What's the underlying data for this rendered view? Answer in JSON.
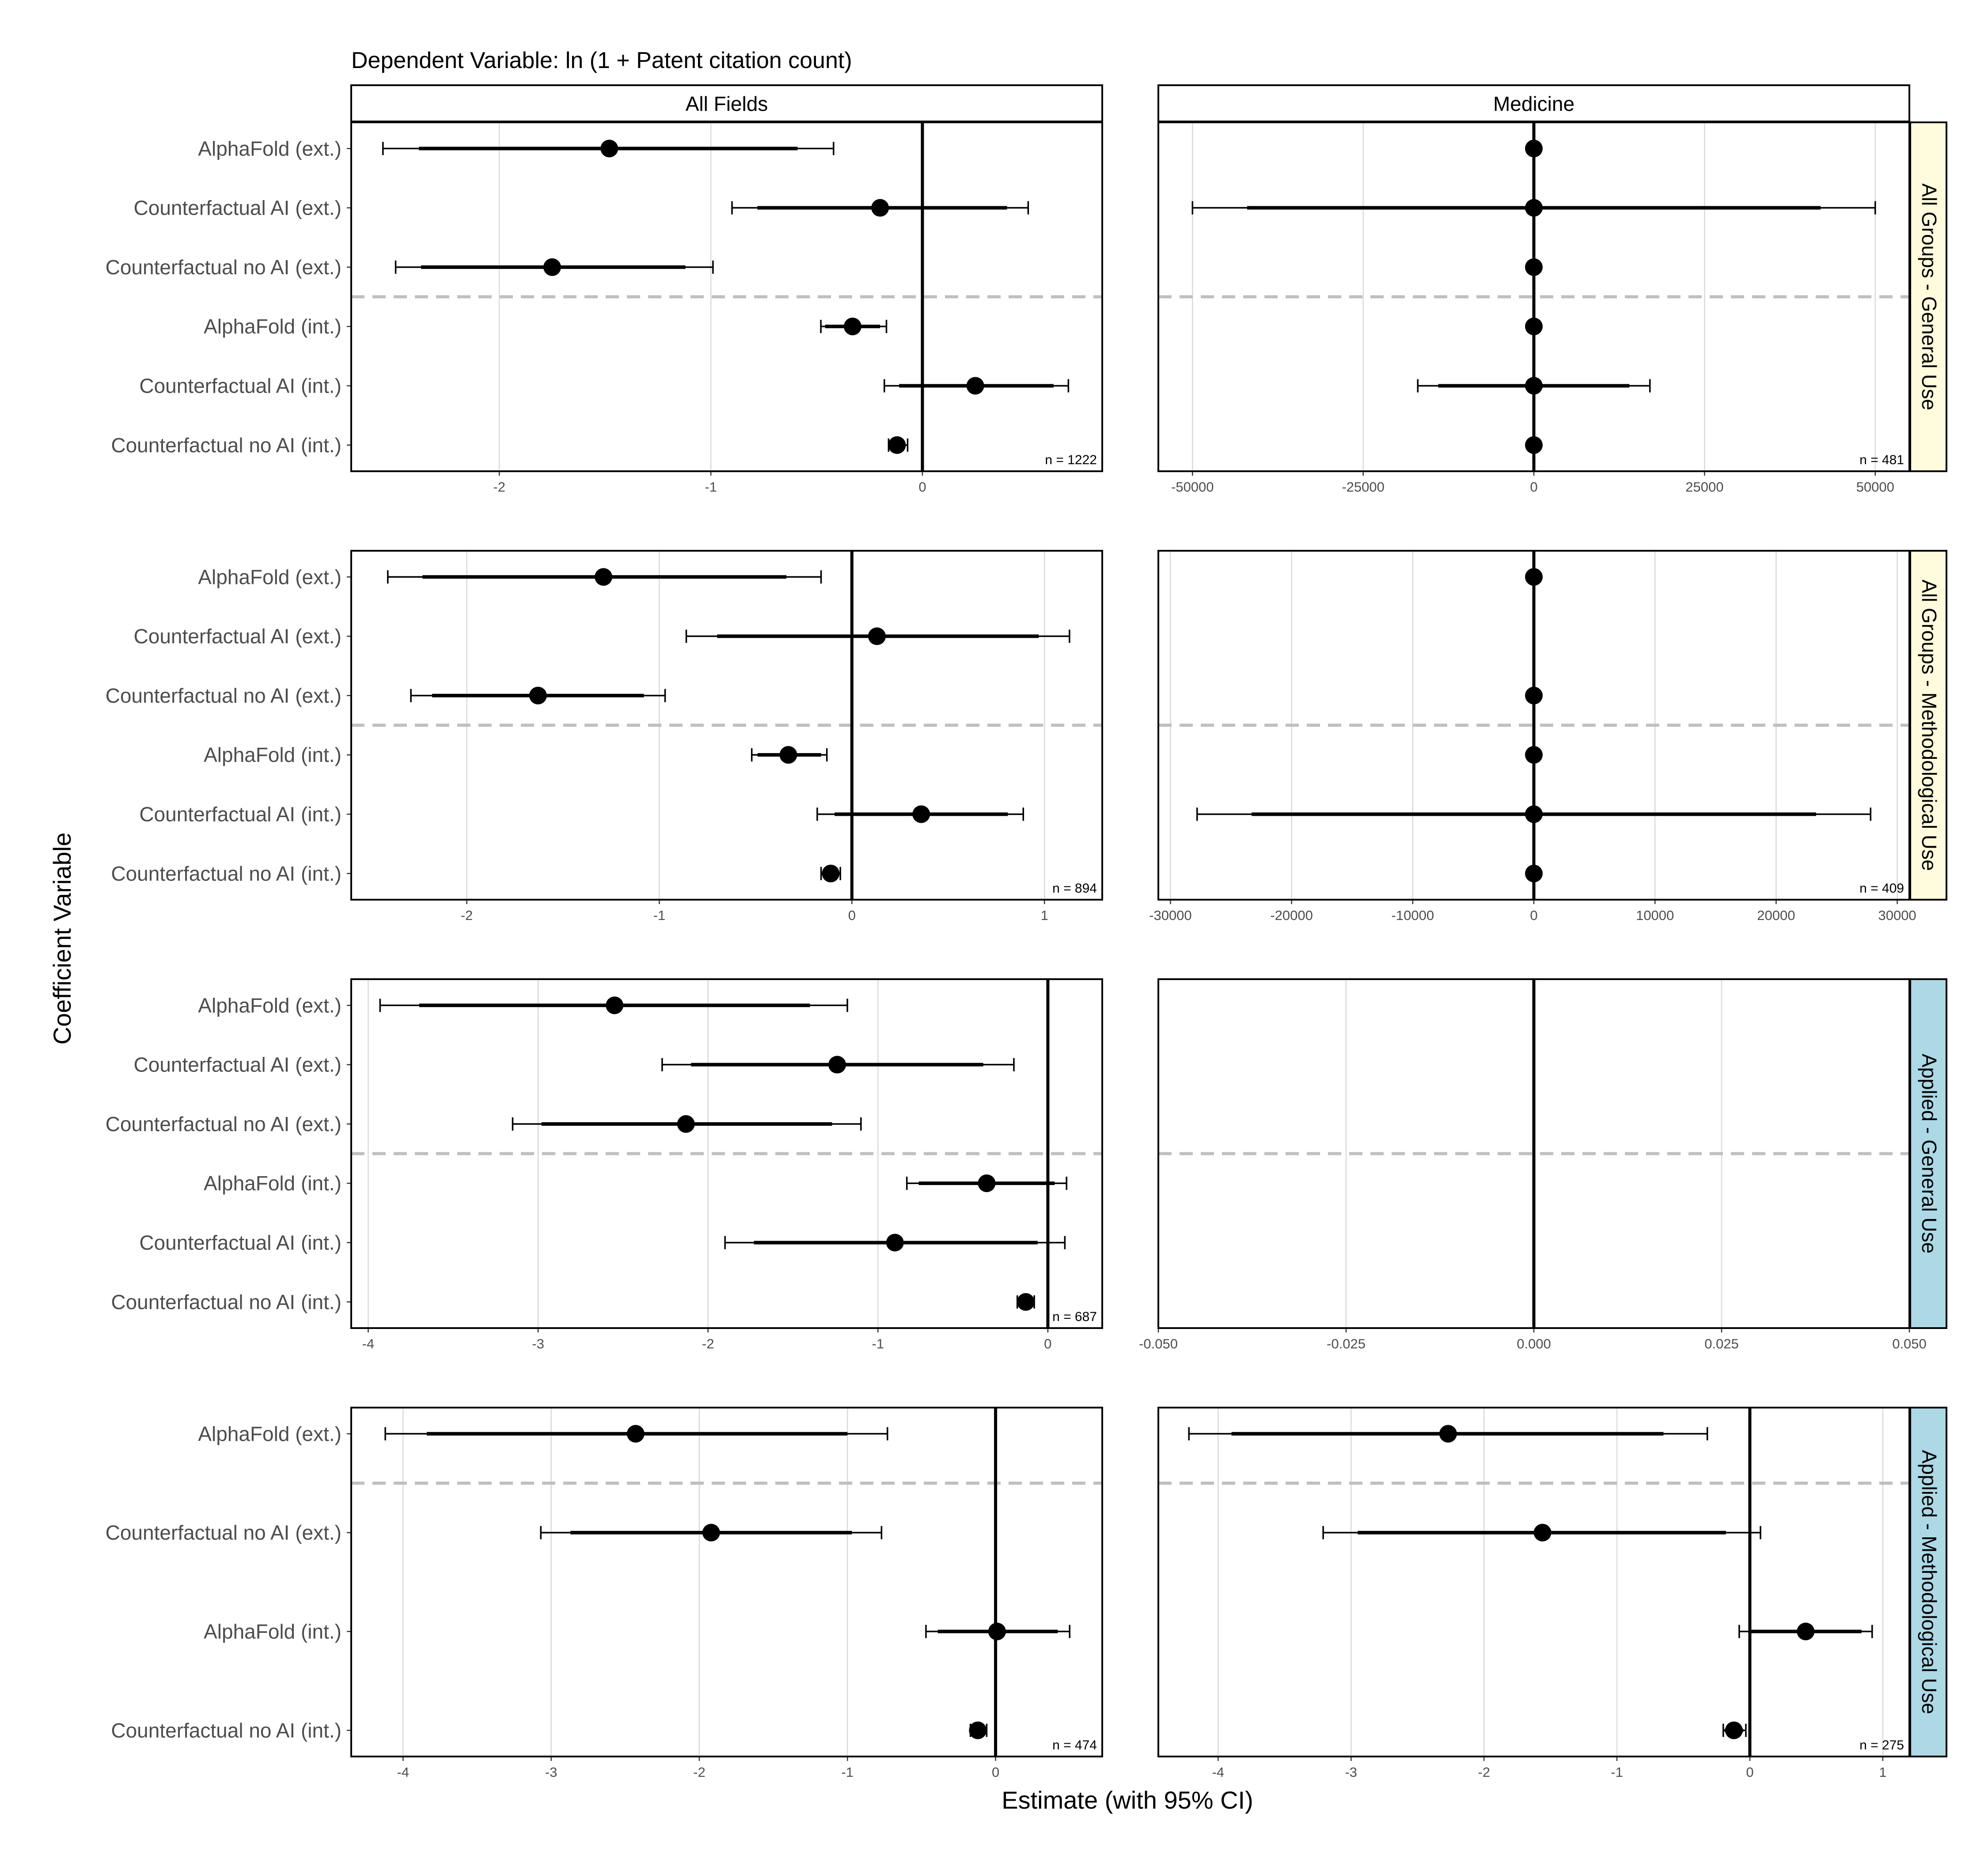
{
  "figure": {
    "title": "Dependent Variable: ln (1 + Patent citation count)",
    "xlabel": "Estimate (with 95% CI)",
    "ylabel": "Coefficient Variable"
  },
  "colors": {
    "point": "#000000",
    "grid": "#d9d9d9",
    "separator": "#bfbfbf",
    "strip_top": "#ffffff",
    "strip_general": "#fffbdc",
    "strip_applied": "#add8e6"
  },
  "column_strips": [
    "All Fields",
    "Medicine"
  ],
  "row_strips": [
    "All Groups - General Use",
    "All Groups - Methodological Use",
    "Applied - General Use",
    "Applied - Methodological Use"
  ],
  "chart_data": [
    {
      "type": "scatter",
      "column": "All Fields",
      "row": "All Groups - General Use",
      "n_label": "n = 1222",
      "xlim": [
        -2.7,
        0.85
      ],
      "xticks": [
        -2,
        -1,
        0
      ],
      "xtick_labels": [
        "-2",
        "-1",
        "0"
      ],
      "categories": [
        "AlphaFold (ext.)",
        "Counterfactual AI (ext.)",
        "Counterfactual no AI (ext.)",
        "AlphaFold (int.)",
        "Counterfactual AI (int.)",
        "Counterfactual no AI (int.)"
      ],
      "separator_after": 3,
      "estimates": [
        -1.48,
        -0.2,
        -1.75,
        -0.33,
        0.25,
        -0.12
      ],
      "ci95": [
        [
          -2.55,
          -0.42
        ],
        [
          -0.9,
          0.5
        ],
        [
          -2.49,
          -0.99
        ],
        [
          -0.48,
          -0.17
        ],
        [
          -0.18,
          0.69
        ],
        [
          -0.16,
          -0.07
        ]
      ],
      "ci90": [
        [
          -2.38,
          -0.59
        ],
        [
          -0.78,
          0.4
        ],
        [
          -2.37,
          -1.12
        ],
        [
          -0.46,
          -0.2
        ],
        [
          -0.11,
          0.62
        ],
        [
          -0.16,
          -0.08
        ]
      ]
    },
    {
      "type": "scatter",
      "column": "Medicine",
      "row": "All Groups - General Use",
      "n_label": "n = 481",
      "xlim": [
        -55000,
        55000
      ],
      "xticks": [
        -50000,
        -25000,
        0,
        25000,
        50000
      ],
      "xtick_labels": [
        "-50000",
        "-25000",
        "0",
        "25000",
        "50000"
      ],
      "categories": [
        "AlphaFold (ext.)",
        "Counterfactual AI (ext.)",
        "Counterfactual no AI (ext.)",
        "AlphaFold (int.)",
        "Counterfactual AI (int.)",
        "Counterfactual no AI (int.)"
      ],
      "separator_after": 3,
      "estimates": [
        0,
        0,
        0,
        0,
        0,
        0
      ],
      "ci95": [
        null,
        [
          -50000,
          50000
        ],
        null,
        null,
        [
          -17000,
          17000
        ],
        null
      ],
      "ci90": [
        null,
        [
          -42000,
          42000
        ],
        null,
        null,
        [
          -14000,
          14000
        ],
        null
      ]
    },
    {
      "type": "scatter",
      "column": "All Fields",
      "row": "All Groups - Methodological Use",
      "n_label": "n = 894",
      "xlim": [
        -2.6,
        1.3
      ],
      "xticks": [
        -2,
        -1,
        0,
        1
      ],
      "xtick_labels": [
        "-2",
        "-1",
        "0",
        "1"
      ],
      "categories": [
        "AlphaFold (ext.)",
        "Counterfactual AI (ext.)",
        "Counterfactual no AI (ext.)",
        "AlphaFold (int.)",
        "Counterfactual AI (int.)",
        "Counterfactual no AI (int.)"
      ],
      "separator_after": 3,
      "estimates": [
        -1.29,
        0.13,
        -1.63,
        -0.33,
        0.36,
        -0.11
      ],
      "ci95": [
        [
          -2.41,
          -0.16
        ],
        [
          -0.86,
          1.13
        ],
        [
          -2.29,
          -0.97
        ],
        [
          -0.52,
          -0.13
        ],
        [
          -0.18,
          0.89
        ],
        [
          -0.16,
          -0.06
        ]
      ],
      "ci90": [
        [
          -2.23,
          -0.34
        ],
        [
          -0.7,
          0.97
        ],
        [
          -2.18,
          -1.08
        ],
        [
          -0.49,
          -0.16
        ],
        [
          -0.09,
          0.81
        ],
        [
          -0.15,
          -0.07
        ]
      ]
    },
    {
      "type": "scatter",
      "column": "Medicine",
      "row": "All Groups - Methodological Use",
      "n_label": "n = 409",
      "xlim": [
        -31000,
        31000
      ],
      "xticks": [
        -30000,
        -20000,
        -10000,
        0,
        10000,
        20000,
        30000
      ],
      "xtick_labels": [
        "-30000",
        "-20000",
        "-10000",
        "0",
        "10000",
        "20000",
        "30000"
      ],
      "categories": [
        "AlphaFold (ext.)",
        "Counterfactual AI (ext.)",
        "Counterfactual no AI (ext.)",
        "AlphaFold (int.)",
        "Counterfactual AI (int.)",
        "Counterfactual no AI (int.)"
      ],
      "separator_after": 3,
      "estimates": [
        0,
        null,
        0,
        0,
        0,
        0
      ],
      "ci95": [
        null,
        null,
        null,
        null,
        [
          -27800,
          27800
        ],
        null
      ],
      "ci90": [
        null,
        null,
        null,
        null,
        [
          -23300,
          23300
        ],
        null
      ]
    },
    {
      "type": "scatter",
      "column": "All Fields",
      "row": "Applied - General Use",
      "n_label": "n = 687",
      "xlim": [
        -4.1,
        0.32
      ],
      "xticks": [
        -4,
        -3,
        -2,
        -1,
        0
      ],
      "xtick_labels": [
        "-4",
        "-3",
        "-2",
        "-1",
        "0"
      ],
      "categories": [
        "AlphaFold (ext.)",
        "Counterfactual AI (ext.)",
        "Counterfactual no AI (ext.)",
        "AlphaFold (int.)",
        "Counterfactual AI (int.)",
        "Counterfactual no AI (int.)"
      ],
      "separator_after": 3,
      "estimates": [
        -2.55,
        -1.24,
        -2.13,
        -0.36,
        -0.9,
        -0.13
      ],
      "ci95": [
        [
          -3.93,
          -1.18
        ],
        [
          -2.27,
          -0.2
        ],
        [
          -3.15,
          -1.1
        ],
        [
          -0.83,
          0.11
        ],
        [
          -1.9,
          0.1
        ],
        [
          -0.18,
          -0.08
        ]
      ],
      "ci90": [
        [
          -3.7,
          -1.4
        ],
        [
          -2.1,
          -0.38
        ],
        [
          -2.98,
          -1.27
        ],
        [
          -0.76,
          0.04
        ],
        [
          -1.73,
          -0.06
        ],
        [
          -0.17,
          -0.09
        ]
      ]
    },
    {
      "type": "scatter",
      "column": "Medicine",
      "row": "Applied - General Use",
      "n_label": "",
      "xlim": [
        -0.05,
        0.05
      ],
      "xticks": [
        -0.05,
        -0.025,
        0,
        0.025,
        0.05
      ],
      "xtick_labels": [
        "-0.050",
        "-0.025",
        "0.000",
        "0.025",
        "0.050"
      ],
      "categories": [
        "AlphaFold (ext.)",
        "Counterfactual AI (ext.)",
        "Counterfactual no AI (ext.)",
        "AlphaFold (int.)",
        "Counterfactual AI (int.)",
        "Counterfactual no AI (int.)"
      ],
      "separator_after": 3,
      "estimates": [
        null,
        null,
        null,
        null,
        null,
        null
      ],
      "ci95": [
        null,
        null,
        null,
        null,
        null,
        null
      ],
      "ci90": [
        null,
        null,
        null,
        null,
        null,
        null
      ]
    },
    {
      "type": "scatter",
      "column": "All Fields",
      "row": "Applied - Methodological Use",
      "n_label": "n = 474",
      "xlim": [
        -4.35,
        0.72
      ],
      "xticks": [
        -4,
        -3,
        -2,
        -1,
        0
      ],
      "xtick_labels": [
        "-4",
        "-3",
        "-2",
        "-1",
        "0"
      ],
      "categories": [
        "AlphaFold (ext.)",
        "Counterfactual no AI (ext.)",
        "AlphaFold (int.)",
        "Counterfactual no AI (int.)"
      ],
      "separator_after": 1,
      "estimates": [
        -2.43,
        -1.92,
        0.01,
        -0.12
      ],
      "ci95": [
        [
          -4.12,
          -0.73
        ],
        [
          -3.07,
          -0.77
        ],
        [
          -0.47,
          0.5
        ],
        [
          -0.17,
          -0.06
        ]
      ],
      "ci90": [
        [
          -3.84,
          -1.0
        ],
        [
          -2.87,
          -0.97
        ],
        [
          -0.39,
          0.42
        ],
        [
          -0.16,
          -0.07
        ]
      ]
    },
    {
      "type": "scatter",
      "column": "Medicine",
      "row": "Applied - Methodological Use",
      "n_label": "n = 275",
      "xlim": [
        -4.45,
        1.2
      ],
      "xticks": [
        -4,
        -3,
        -2,
        -1,
        0,
        1
      ],
      "xtick_labels": [
        "-4",
        "-3",
        "-2",
        "-1",
        "0",
        "1"
      ],
      "categories": [
        "AlphaFold (ext.)",
        "Counterfactual no AI (ext.)",
        "AlphaFold (int.)",
        "Counterfactual no AI (int.)"
      ],
      "separator_after": 1,
      "estimates": [
        -2.27,
        -1.56,
        0.42,
        -0.12
      ],
      "ci95": [
        [
          -4.22,
          -0.32
        ],
        [
          -3.21,
          0.08
        ],
        [
          -0.08,
          0.92
        ],
        [
          -0.2,
          -0.03
        ]
      ],
      "ci90": [
        [
          -3.9,
          -0.65
        ],
        [
          -2.95,
          -0.18
        ],
        [
          0.0,
          0.84
        ],
        [
          -0.19,
          -0.05
        ]
      ]
    }
  ]
}
